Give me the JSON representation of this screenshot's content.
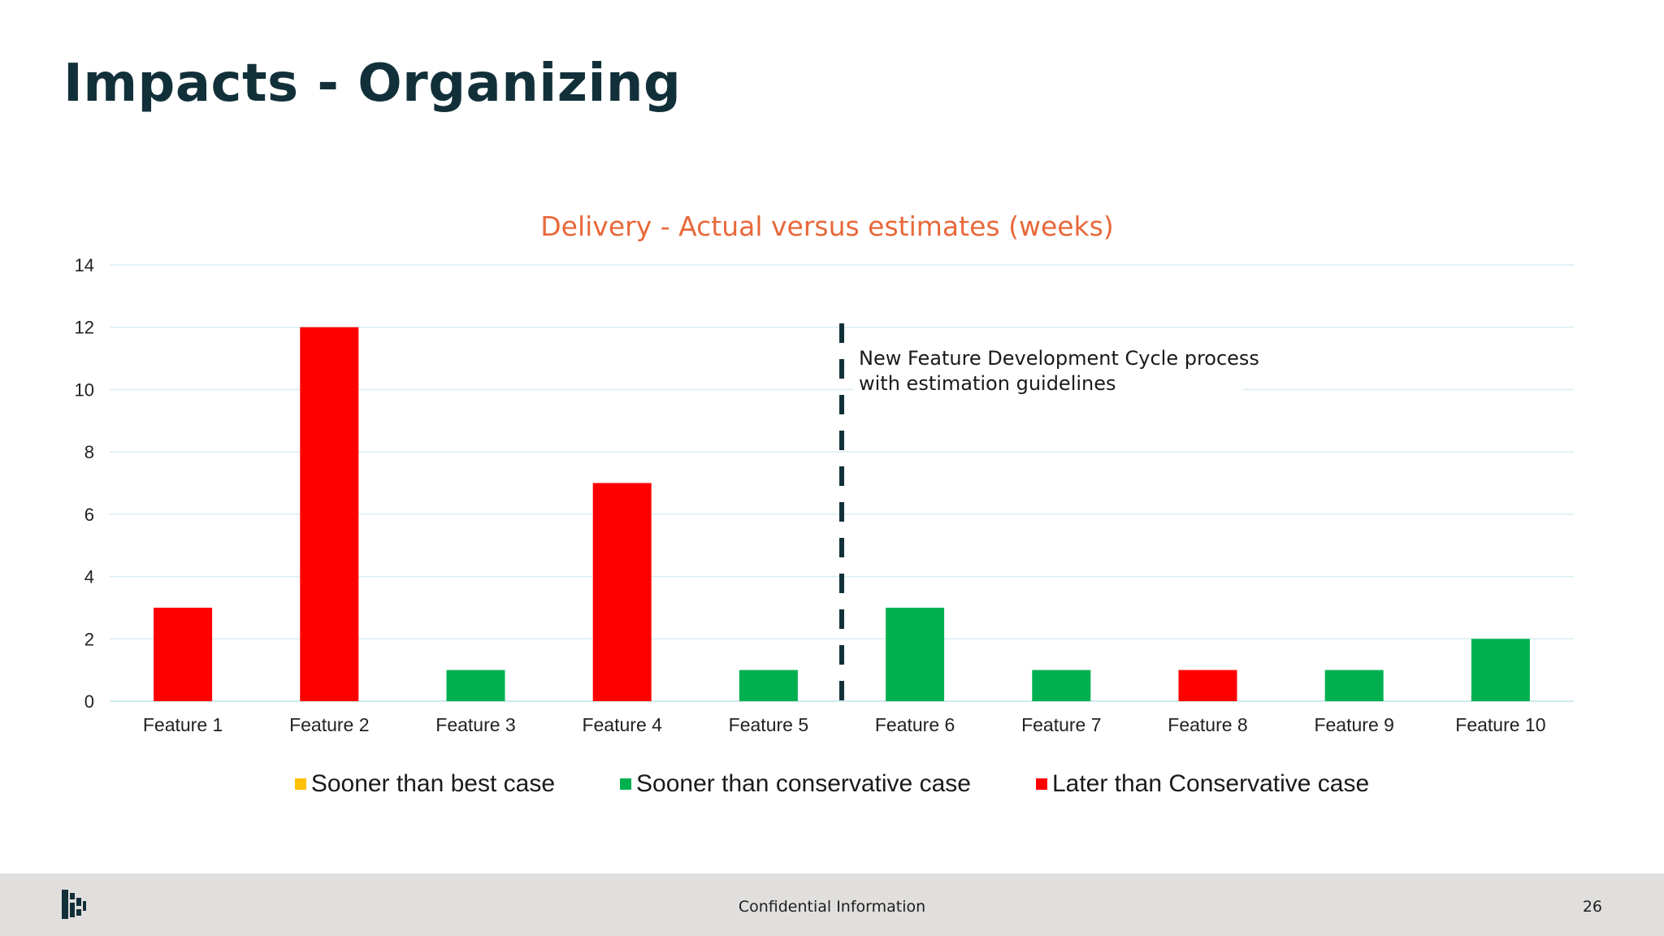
{
  "slide": {
    "title": "Impacts - Organizing"
  },
  "chart_data": {
    "type": "bar",
    "title": "Delivery - Actual versus estimates (weeks)",
    "title_color": "#e8683a",
    "categories": [
      "Feature 1",
      "Feature 2",
      "Feature 3",
      "Feature 4",
      "Feature 5",
      "Feature 6",
      "Feature 7",
      "Feature 8",
      "Feature 9",
      "Feature 10"
    ],
    "values": [
      3,
      12,
      1,
      7,
      1,
      3,
      1,
      1,
      1,
      2
    ],
    "value_status": [
      "later_than_conservative",
      "later_than_conservative",
      "sooner_than_conservative",
      "later_than_conservative",
      "sooner_than_conservative",
      "sooner_than_conservative",
      "sooner_than_conservative",
      "later_than_conservative",
      "sooner_than_conservative",
      "sooner_than_conservative"
    ],
    "ylim": [
      0,
      14
    ],
    "yticks": [
      0,
      2,
      4,
      6,
      8,
      10,
      12,
      14
    ],
    "grid": true,
    "legend_placement": "bottom",
    "legend": [
      {
        "key": "sooner_than_best",
        "label": "Sooner than best case",
        "color": "#ffc000"
      },
      {
        "key": "sooner_than_conservative",
        "label": "Sooner than conservative case",
        "color": "#00b050"
      },
      {
        "key": "later_than_conservative",
        "label": "Later than Conservative case",
        "color": "#ff0000"
      }
    ],
    "annotation": {
      "text_line1": "New Feature Development Cycle process",
      "text_line2": "with estimation guidelines",
      "divider_between": [
        "Feature 5",
        "Feature 6"
      ]
    }
  },
  "footer": {
    "text": "Confidential Information",
    "page_number": "26"
  }
}
